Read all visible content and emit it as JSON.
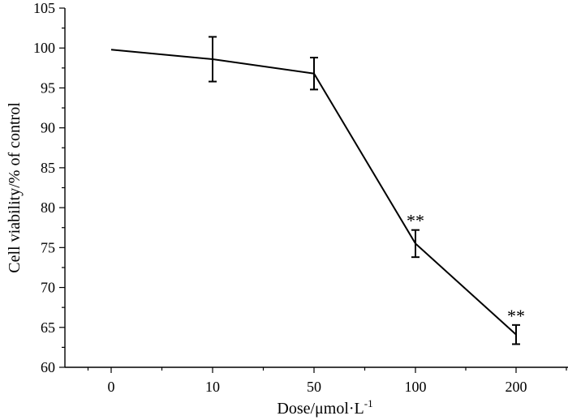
{
  "chart_data": {
    "type": "line",
    "categories": [
      "0",
      "10",
      "50",
      "100",
      "200"
    ],
    "series": [
      {
        "values": [
          99.8,
          98.6,
          96.8,
          75.5,
          64.1
        ],
        "errors": [
          0,
          2.8,
          2.0,
          1.7,
          1.2
        ],
        "annotations": [
          "",
          "",
          "",
          "**",
          "**"
        ]
      }
    ],
    "xlabel": "Dose/μmol·L",
    "xlabel_sup": "-1",
    "ylabel": "Cell viability/% of control",
    "ylim": [
      60,
      105
    ],
    "yticks": [
      "60",
      "65",
      "70",
      "75",
      "80",
      "85",
      "90",
      "95",
      "100",
      "105"
    ],
    "grid": false,
    "line_color": "#000000"
  }
}
